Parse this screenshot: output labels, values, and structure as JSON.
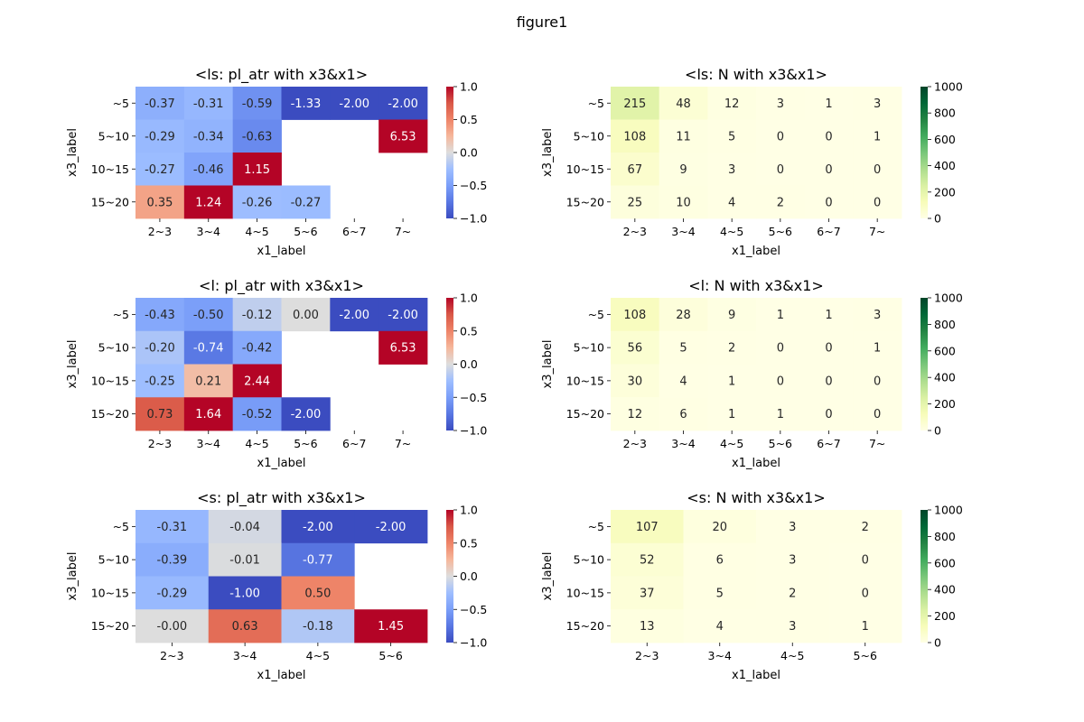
{
  "figure": {
    "title": "figure1"
  },
  "colorbars": {
    "diverging": {
      "ticks": [
        "1.0",
        "0.5",
        "0.0",
        "−0.5",
        "−1.0"
      ],
      "tick_values": [
        1.0,
        0.5,
        0.0,
        -0.5,
        -1.0
      ],
      "range": [
        -1.0,
        1.0
      ],
      "colormap": "coolwarm"
    },
    "sequential": {
      "ticks": [
        "1000",
        "800",
        "600",
        "400",
        "200",
        "0"
      ],
      "tick_values": [
        1000,
        800,
        600,
        400,
        200,
        0
      ],
      "range": [
        0,
        1000
      ],
      "colormap": "YlGn"
    }
  },
  "chart_data": [
    {
      "type": "heatmap",
      "title": "<ls: pl_atr with x3&x1>",
      "xlabel": "x1_label",
      "ylabel": "x3_label",
      "x_categories": [
        "2~3",
        "3~4",
        "4~5",
        "5~6",
        "6~7",
        "7~"
      ],
      "y_categories": [
        "~5",
        "5~10",
        "10~15",
        "15~20"
      ],
      "values": [
        [
          -0.37,
          -0.31,
          -0.59,
          -1.33,
          -2.0,
          -2.0
        ],
        [
          -0.29,
          -0.34,
          -0.63,
          null,
          null,
          6.53
        ],
        [
          -0.27,
          -0.46,
          1.15,
          null,
          null,
          null
        ],
        [
          0.35,
          1.24,
          -0.26,
          -0.27,
          null,
          null
        ]
      ],
      "labels": [
        [
          "-0.37",
          "-0.31",
          "-0.59",
          "-1.33",
          "-2.00",
          "-2.00"
        ],
        [
          "-0.29",
          "-0.34",
          "-0.63",
          "",
          "",
          "6.53"
        ],
        [
          "-0.27",
          "-0.46",
          "1.15",
          "",
          "",
          ""
        ],
        [
          "0.35",
          "1.24",
          "-0.26",
          "-0.27",
          "",
          ""
        ]
      ],
      "colormap": "coolwarm",
      "vmin": -1.0,
      "vmax": 1.0
    },
    {
      "type": "heatmap",
      "title": "<ls: N with x3&x1>",
      "xlabel": "x1_label",
      "ylabel": "x3_label",
      "x_categories": [
        "2~3",
        "3~4",
        "4~5",
        "5~6",
        "6~7",
        "7~"
      ],
      "y_categories": [
        "~5",
        "5~10",
        "10~15",
        "15~20"
      ],
      "values": [
        [
          215,
          48,
          12,
          3,
          1,
          3
        ],
        [
          108,
          11,
          5,
          0,
          0,
          1
        ],
        [
          67,
          9,
          3,
          0,
          0,
          0
        ],
        [
          25,
          10,
          4,
          2,
          0,
          0
        ]
      ],
      "labels": [
        [
          "215",
          "48",
          "12",
          "3",
          "1",
          "3"
        ],
        [
          "108",
          "11",
          "5",
          "0",
          "0",
          "1"
        ],
        [
          "67",
          "9",
          "3",
          "0",
          "0",
          "0"
        ],
        [
          "25",
          "10",
          "4",
          "2",
          "0",
          "0"
        ]
      ],
      "colormap": "YlGn",
      "vmin": 0,
      "vmax": 1000
    },
    {
      "type": "heatmap",
      "title": "<l: pl_atr with x3&x1>",
      "xlabel": "x1_label",
      "ylabel": "x3_label",
      "x_categories": [
        "2~3",
        "3~4",
        "4~5",
        "5~6",
        "6~7",
        "7~"
      ],
      "y_categories": [
        "~5",
        "5~10",
        "10~15",
        "15~20"
      ],
      "values": [
        [
          -0.43,
          -0.5,
          -0.12,
          0.0,
          -2.0,
          -2.0
        ],
        [
          -0.2,
          -0.74,
          -0.42,
          null,
          null,
          6.53
        ],
        [
          -0.25,
          0.21,
          2.44,
          null,
          null,
          null
        ],
        [
          0.73,
          1.64,
          -0.52,
          -2.0,
          null,
          null
        ]
      ],
      "labels": [
        [
          "-0.43",
          "-0.50",
          "-0.12",
          "0.00",
          "-2.00",
          "-2.00"
        ],
        [
          "-0.20",
          "-0.74",
          "-0.42",
          "",
          "",
          "6.53"
        ],
        [
          "-0.25",
          "0.21",
          "2.44",
          "",
          "",
          ""
        ],
        [
          "0.73",
          "1.64",
          "-0.52",
          "-2.00",
          "",
          ""
        ]
      ],
      "colormap": "coolwarm",
      "vmin": -1.0,
      "vmax": 1.0
    },
    {
      "type": "heatmap",
      "title": "<l: N with x3&x1>",
      "xlabel": "x1_label",
      "ylabel": "x3_label",
      "x_categories": [
        "2~3",
        "3~4",
        "4~5",
        "5~6",
        "6~7",
        "7~"
      ],
      "y_categories": [
        "~5",
        "5~10",
        "10~15",
        "15~20"
      ],
      "values": [
        [
          108,
          28,
          9,
          1,
          1,
          3
        ],
        [
          56,
          5,
          2,
          0,
          0,
          1
        ],
        [
          30,
          4,
          1,
          0,
          0,
          0
        ],
        [
          12,
          6,
          1,
          1,
          0,
          0
        ]
      ],
      "labels": [
        [
          "108",
          "28",
          "9",
          "1",
          "1",
          "3"
        ],
        [
          "56",
          "5",
          "2",
          "0",
          "0",
          "1"
        ],
        [
          "30",
          "4",
          "1",
          "0",
          "0",
          "0"
        ],
        [
          "12",
          "6",
          "1",
          "1",
          "0",
          "0"
        ]
      ],
      "colormap": "YlGn",
      "vmin": 0,
      "vmax": 1000
    },
    {
      "type": "heatmap",
      "title": "<s: pl_atr with x3&x1>",
      "xlabel": "x1_label",
      "ylabel": "x3_label",
      "x_categories": [
        "2~3",
        "3~4",
        "4~5",
        "5~6"
      ],
      "y_categories": [
        "~5",
        "5~10",
        "10~15",
        "15~20"
      ],
      "values": [
        [
          -0.31,
          -0.04,
          -2.0,
          -2.0
        ],
        [
          -0.39,
          -0.01,
          -0.77,
          null
        ],
        [
          -0.29,
          -1.0,
          0.5,
          null
        ],
        [
          -0.0,
          0.63,
          -0.18,
          1.45
        ]
      ],
      "labels": [
        [
          "-0.31",
          "-0.04",
          "-2.00",
          "-2.00"
        ],
        [
          "-0.39",
          "-0.01",
          "-0.77",
          ""
        ],
        [
          "-0.29",
          "-1.00",
          "0.50",
          ""
        ],
        [
          "-0.00",
          "0.63",
          "-0.18",
          "1.45"
        ]
      ],
      "colormap": "coolwarm",
      "vmin": -1.0,
      "vmax": 1.0
    },
    {
      "type": "heatmap",
      "title": "<s: N with x3&x1>",
      "xlabel": "x1_label",
      "ylabel": "x3_label",
      "x_categories": [
        "2~3",
        "3~4",
        "4~5",
        "5~6"
      ],
      "y_categories": [
        "~5",
        "5~10",
        "10~15",
        "15~20"
      ],
      "values": [
        [
          107,
          20,
          3,
          2
        ],
        [
          52,
          6,
          3,
          0
        ],
        [
          37,
          5,
          2,
          0
        ],
        [
          13,
          4,
          3,
          1
        ]
      ],
      "labels": [
        [
          "107",
          "20",
          "3",
          "2"
        ],
        [
          "52",
          "6",
          "3",
          "0"
        ],
        [
          "37",
          "5",
          "2",
          "0"
        ],
        [
          "13",
          "4",
          "3",
          "1"
        ]
      ],
      "colormap": "YlGn",
      "vmin": 0,
      "vmax": 1000
    }
  ]
}
